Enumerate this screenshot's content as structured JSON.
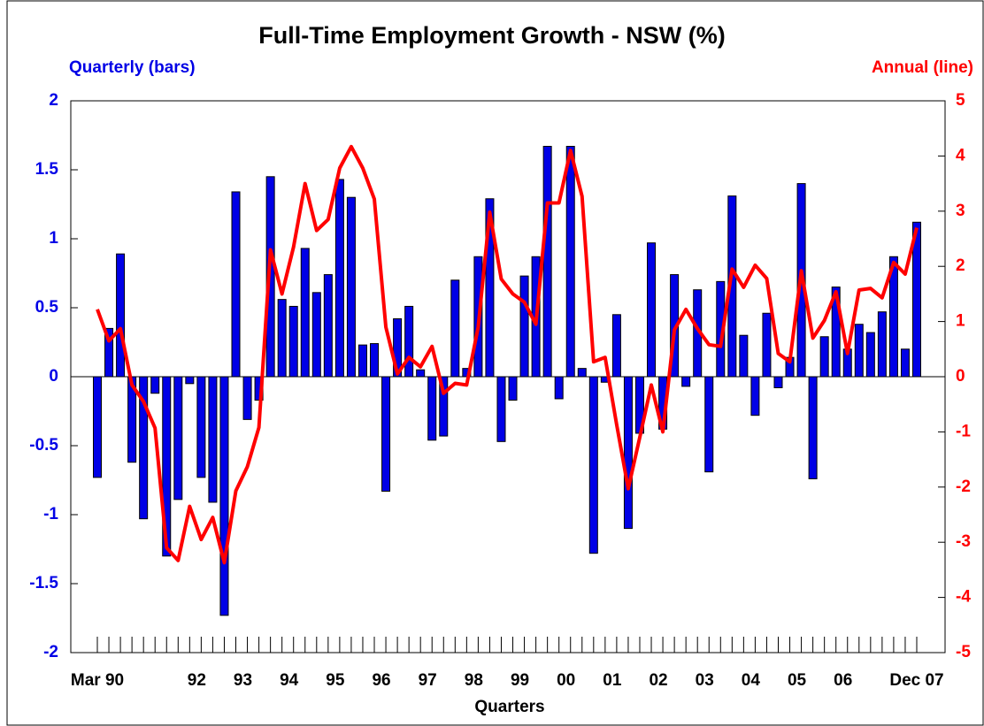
{
  "chart_data": {
    "type": "bar_line",
    "title": "Full-Time Employment Growth - NSW (%)",
    "xlabel": "Quarters",
    "categories": [
      "Mar 90",
      null,
      null,
      null,
      null,
      null,
      null,
      null,
      "92",
      null,
      null,
      null,
      "93",
      null,
      null,
      null,
      "94",
      null,
      null,
      null,
      "95",
      null,
      null,
      null,
      "96",
      null,
      null,
      null,
      "97",
      null,
      null,
      null,
      "98",
      null,
      null,
      null,
      "99",
      null,
      null,
      null,
      "00",
      null,
      null,
      null,
      "01",
      null,
      null,
      null,
      "02",
      null,
      null,
      null,
      "03",
      null,
      null,
      null,
      "04",
      null,
      null,
      null,
      "05",
      null,
      null,
      null,
      "06",
      null,
      null,
      null,
      null,
      null,
      null,
      "Dec 07"
    ],
    "series": [
      {
        "name": "Quarterly (bars)",
        "type": "bar",
        "color": "#0000e6",
        "values": [
          -0.73,
          0.35,
          0.89,
          -0.62,
          -1.03,
          -0.12,
          -1.3,
          -0.89,
          -0.05,
          -0.73,
          -0.91,
          -1.73,
          1.34,
          -0.31,
          -0.17,
          1.45,
          0.56,
          0.51,
          0.93,
          0.61,
          0.74,
          1.43,
          1.3,
          0.23,
          0.24,
          -0.83,
          0.42,
          0.51,
          0.05,
          -0.46,
          -0.43,
          0.7,
          0.06,
          0.87,
          1.29,
          -0.47,
          -0.17,
          0.73,
          0.87,
          1.67,
          -0.16,
          1.67,
          0.06,
          -1.28,
          -0.04,
          0.45,
          -1.1,
          -0.41,
          0.97,
          -0.38,
          0.74,
          -0.07,
          0.63,
          -0.69,
          0.69,
          1.31,
          0.3,
          -0.28,
          0.46,
          -0.08,
          0.14,
          1.4,
          -0.74,
          0.29,
          0.65,
          0.2,
          0.38,
          0.32,
          0.47,
          0.87,
          0.2,
          1.12
        ]
      },
      {
        "name": "Annual (line)",
        "type": "line",
        "axis": "y2",
        "color": "#ff0000",
        "values": [
          1.22,
          0.65,
          0.87,
          -0.15,
          -0.45,
          -0.93,
          -3.1,
          -3.33,
          -2.35,
          -2.95,
          -2.55,
          -3.37,
          -2.07,
          -1.63,
          -0.92,
          2.3,
          1.5,
          2.35,
          3.5,
          2.65,
          2.85,
          3.78,
          4.17,
          3.78,
          3.22,
          0.9,
          0.05,
          0.35,
          0.18,
          0.55,
          -0.3,
          -0.12,
          -0.15,
          0.9,
          2.98,
          1.77,
          1.5,
          1.35,
          0.95,
          3.15,
          3.15,
          4.1,
          3.27,
          0.27,
          0.35,
          -0.87,
          -2.03,
          -1.1,
          -0.15,
          -1.0,
          0.85,
          1.22,
          0.87,
          0.58,
          0.55,
          1.95,
          1.62,
          2.02,
          1.78,
          0.42,
          0.27,
          1.92,
          0.7,
          1.02,
          1.54,
          0.42,
          1.57,
          1.6,
          1.43,
          2.07,
          1.86,
          2.7
        ]
      }
    ],
    "ylim": [
      -2,
      2
    ],
    "yticks": [
      -2,
      -1.5,
      -1,
      -0.5,
      0,
      0.5,
      1,
      1.5,
      2
    ],
    "ycolor": "#0000e6",
    "y2lim": [
      -5,
      5
    ],
    "y2ticks": [
      -5,
      -4,
      -3,
      -2,
      -1,
      0,
      1,
      2,
      3,
      4,
      5
    ],
    "y2color": "#ff0000"
  }
}
